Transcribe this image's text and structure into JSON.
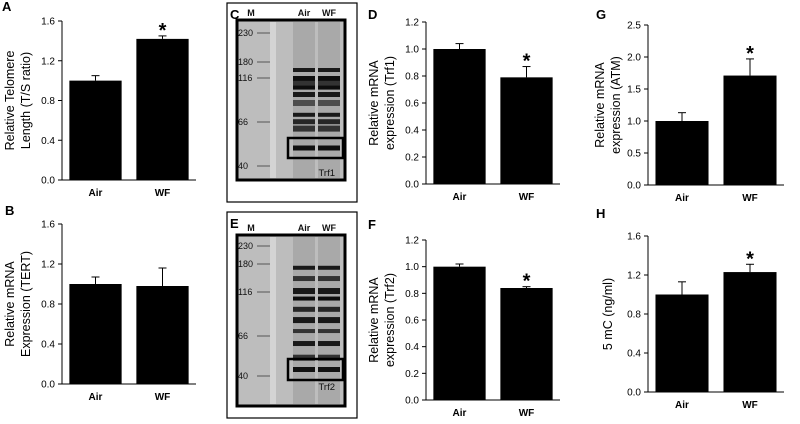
{
  "chart_data": [
    {
      "id": "A",
      "panel_label": "A",
      "type": "bar",
      "categories": [
        "Air",
        "WF"
      ],
      "values": [
        1.0,
        1.42
      ],
      "errors": [
        0.05,
        0.03
      ],
      "significant": [
        false,
        true
      ],
      "marker": "*",
      "ylabel": [
        "Relative Telomere",
        "Length (T/S ratio)"
      ],
      "ylim": [
        0,
        1.6
      ],
      "yticks": [
        "0.0",
        "0.4",
        "0.8",
        "1.2",
        "1.6"
      ]
    },
    {
      "id": "B",
      "panel_label": "B",
      "type": "bar",
      "categories": [
        "Air",
        "WF"
      ],
      "values": [
        1.0,
        0.98
      ],
      "errors": [
        0.07,
        0.18
      ],
      "significant": [
        false,
        false
      ],
      "marker": "*",
      "ylabel": [
        "Relative mRNA",
        "Expression (TERT)"
      ],
      "ylim": [
        0,
        1.6
      ],
      "yticks": [
        "0.0",
        "0.4",
        "0.8",
        "1.2",
        "1.6"
      ]
    },
    {
      "id": "D",
      "panel_label": "D",
      "type": "bar",
      "categories": [
        "Air",
        "WF"
      ],
      "values": [
        1.0,
        0.79
      ],
      "errors": [
        0.04,
        0.08
      ],
      "significant": [
        false,
        true
      ],
      "marker": "*",
      "ylabel": [
        "Relative mRNA",
        "expression (Trf1)"
      ],
      "ylim": [
        0,
        1.2
      ],
      "yticks": [
        "0.0",
        "0.2",
        "0.4",
        "0.6",
        "0.8",
        "1.0",
        "1.2"
      ]
    },
    {
      "id": "F",
      "panel_label": "F",
      "type": "bar",
      "categories": [
        "Air",
        "WF"
      ],
      "values": [
        1.0,
        0.84
      ],
      "errors": [
        0.02,
        0.01
      ],
      "significant": [
        false,
        true
      ],
      "marker": "*",
      "ylabel": [
        "Relative mRNA",
        "expression (Trf2)"
      ],
      "ylim": [
        0,
        1.2
      ],
      "yticks": [
        "0.0",
        "0.2",
        "0.4",
        "0.6",
        "0.8",
        "1.0",
        "1.2"
      ]
    },
    {
      "id": "G",
      "panel_label": "G",
      "type": "bar",
      "categories": [
        "Air",
        "WF"
      ],
      "values": [
        1.0,
        1.71
      ],
      "errors": [
        0.13,
        0.26
      ],
      "significant": [
        false,
        true
      ],
      "marker": "*",
      "ylabel": [
        "Relative mRNA",
        "expression (ATM)"
      ],
      "ylim": [
        0,
        2.5
      ],
      "yticks": [
        "0.0",
        "0.5",
        "1.0",
        "1.5",
        "2.0",
        "2.5"
      ]
    },
    {
      "id": "H",
      "panel_label": "H",
      "type": "bar",
      "categories": [
        "Air",
        "WF"
      ],
      "values": [
        1.0,
        1.23
      ],
      "errors": [
        0.13,
        0.08
      ],
      "significant": [
        false,
        true
      ],
      "marker": "*",
      "ylabel": [
        "5 mC (ng/ml)"
      ],
      "ylim": [
        0,
        1.6
      ],
      "yticks": [
        "0.0",
        "0.4",
        "0.8",
        "1.2",
        "1.6"
      ]
    }
  ],
  "blots": [
    {
      "id": "C",
      "panel_label": "C",
      "lanes": [
        "M",
        "Air",
        "WF"
      ],
      "markers": [
        "230",
        "180",
        "116",
        "66",
        "40"
      ],
      "target": "Trf1"
    },
    {
      "id": "E",
      "panel_label": "E",
      "lanes": [
        "M",
        "Air",
        "WF"
      ],
      "markers": [
        "230",
        "180",
        "116",
        "66",
        "40"
      ],
      "target": "Trf2"
    }
  ]
}
